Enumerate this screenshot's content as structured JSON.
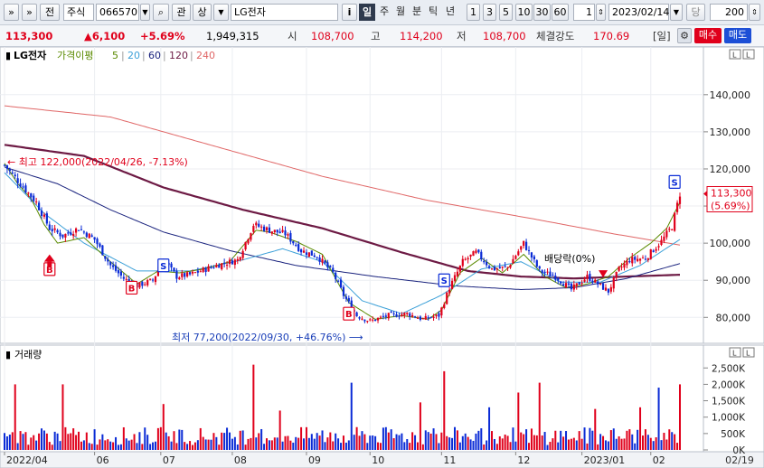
{
  "toolbar": {
    "btn_collapse": "»",
    "btn_expand": "»",
    "btn_all": "전",
    "market_select": "주식",
    "code": "066570",
    "btn_rel": "관",
    "btn_up": "상",
    "name": "LG전자",
    "btn_info": "i",
    "period_day": "일",
    "period_week": "주",
    "period_month": "월",
    "period_min": "분",
    "period_tick": "틱",
    "period_year": "년",
    "n1": "1",
    "n3": "3",
    "n5": "5",
    "n10": "10",
    "n30": "30",
    "n60": "60",
    "spin_value": "1",
    "date": "2023/02/14",
    "btn_dang": "당",
    "count": "200"
  },
  "quote": {
    "price": "113,300",
    "change": "▲6,100",
    "pct": "+5.69%",
    "volume": "1,949,315",
    "open_label": "시",
    "open": "108,700",
    "high_label": "고",
    "high": "114,200",
    "low_label": "저",
    "low": "108,700",
    "strength_label": "체결강도",
    "strength": "170.69",
    "period_tag": "[일]",
    "buy": "매수",
    "sell": "매도"
  },
  "colors": {
    "up": "#e0001b",
    "down": "#0a2bd6",
    "ma5": "#5a8a00",
    "ma20": "#3ca0d8",
    "ma60": "#1a237e",
    "ma120": "#6d1a44",
    "ma240": "#e06666"
  },
  "chart_data": {
    "type": "candlestick",
    "legend": {
      "title": "LG전자",
      "ma_label": "가격이평",
      "ma5": "5",
      "ma20": "20",
      "ma60": "60",
      "ma120": "120",
      "ma240": "240"
    },
    "y_ticks": [
      "140,000",
      "130,000",
      "120,000",
      "110,000",
      "100,000",
      "90,000",
      "80,000"
    ],
    "y_tick_values": [
      140000,
      130000,
      120000,
      110000,
      100000,
      90000,
      80000
    ],
    "y_range": [
      73500,
      147500
    ],
    "x_labels": [
      {
        "label": "2022/04",
        "index": 0
      },
      {
        "label": "06",
        "index": 34
      },
      {
        "label": "07",
        "index": 59
      },
      {
        "label": "08",
        "index": 86
      },
      {
        "label": "09",
        "index": 114
      },
      {
        "label": "10",
        "index": 138
      },
      {
        "label": "11",
        "index": 165
      },
      {
        "label": "12",
        "index": 193
      },
      {
        "label": "2023/01",
        "index": 218
      },
      {
        "label": "02",
        "index": 244
      }
    ],
    "date_label": "02/19",
    "scale_tag": "L",
    "price_tag_value": "113,300",
    "price_tag_pct": "(5.69%)",
    "price_tag_level": 113300,
    "annotations": {
      "high": "최고 122,000(2022/04/26, -7.13%)",
      "high_value": 122000,
      "low": "최저 77,200(2022/09/30, +46.76%)",
      "low_value": 77200,
      "dividend": "배당락(0%)"
    },
    "signals": [
      {
        "type": "B",
        "index": 17,
        "value": 93000
      },
      {
        "type": "S",
        "index": 60,
        "value": 94000
      },
      {
        "type": "B",
        "index": 48,
        "value": 88000
      },
      {
        "type": "B",
        "index": 130,
        "value": 81000
      },
      {
        "type": "S",
        "index": 166,
        "value": 90000
      },
      {
        "type": "S",
        "index": 253,
        "value": 116500
      }
    ],
    "ma240": [
      [
        0,
        137000
      ],
      [
        40,
        134000
      ],
      [
        80,
        126000
      ],
      [
        120,
        118000
      ],
      [
        160,
        111500
      ],
      [
        200,
        106500
      ],
      [
        230,
        102500
      ],
      [
        255,
        99500
      ]
    ],
    "ma120": [
      [
        0,
        126500
      ],
      [
        30,
        123500
      ],
      [
        60,
        115000
      ],
      [
        90,
        109000
      ],
      [
        120,
        104000
      ],
      [
        150,
        97500
      ],
      [
        175,
        92500
      ],
      [
        195,
        91000
      ],
      [
        215,
        90500
      ],
      [
        235,
        91000
      ],
      [
        255,
        91500
      ]
    ],
    "ma60": [
      [
        0,
        120500
      ],
      [
        20,
        116000
      ],
      [
        40,
        109000
      ],
      [
        60,
        103000
      ],
      [
        85,
        98000
      ],
      [
        110,
        94000
      ],
      [
        140,
        91000
      ],
      [
        170,
        88500
      ],
      [
        195,
        87500
      ],
      [
        215,
        88000
      ],
      [
        235,
        90500
      ],
      [
        255,
        94500
      ]
    ],
    "ma20": [
      [
        0,
        119000
      ],
      [
        15,
        108000
      ],
      [
        30,
        100000
      ],
      [
        50,
        92500
      ],
      [
        70,
        92500
      ],
      [
        90,
        95500
      ],
      [
        105,
        98500
      ],
      [
        120,
        95000
      ],
      [
        135,
        84500
      ],
      [
        150,
        81000
      ],
      [
        165,
        86000
      ],
      [
        180,
        93000
      ],
      [
        195,
        95000
      ],
      [
        210,
        89500
      ],
      [
        225,
        89500
      ],
      [
        240,
        94000
      ],
      [
        255,
        101000
      ]
    ],
    "ma5": [
      [
        0,
        121500
      ],
      [
        5,
        116000
      ],
      [
        10,
        112000
      ],
      [
        15,
        105000
      ],
      [
        20,
        100000
      ],
      [
        30,
        101500
      ],
      [
        40,
        95000
      ],
      [
        50,
        89000
      ],
      [
        58,
        92500
      ],
      [
        66,
        92000
      ],
      [
        75,
        93000
      ],
      [
        85,
        95000
      ],
      [
        95,
        103500
      ],
      [
        100,
        103000
      ],
      [
        110,
        100500
      ],
      [
        120,
        97000
      ],
      [
        130,
        84000
      ],
      [
        140,
        79500
      ],
      [
        150,
        80500
      ],
      [
        160,
        79500
      ],
      [
        165,
        82000
      ],
      [
        172,
        92000
      ],
      [
        180,
        96000
      ],
      [
        188,
        92000
      ],
      [
        196,
        97000
      ],
      [
        204,
        91000
      ],
      [
        212,
        88000
      ],
      [
        220,
        89000
      ],
      [
        228,
        91000
      ],
      [
        236,
        96000
      ],
      [
        244,
        100000
      ],
      [
        250,
        104000
      ],
      [
        255,
        111000
      ]
    ],
    "price_path": [
      [
        0,
        121000
      ],
      [
        6,
        116000
      ],
      [
        12,
        111000
      ],
      [
        17,
        104000
      ],
      [
        22,
        102000
      ],
      [
        28,
        104000
      ],
      [
        34,
        101000
      ],
      [
        40,
        94000
      ],
      [
        45,
        90500
      ],
      [
        50,
        88500
      ],
      [
        56,
        90000
      ],
      [
        60,
        95500
      ],
      [
        65,
        91000
      ],
      [
        70,
        91500
      ],
      [
        80,
        94000
      ],
      [
        88,
        95500
      ],
      [
        94,
        105000
      ],
      [
        100,
        103500
      ],
      [
        106,
        102500
      ],
      [
        112,
        98000
      ],
      [
        118,
        96500
      ],
      [
        124,
        92000
      ],
      [
        128,
        86000
      ],
      [
        133,
        80500
      ],
      [
        138,
        79000
      ],
      [
        145,
        80500
      ],
      [
        152,
        81000
      ],
      [
        158,
        79500
      ],
      [
        164,
        80500
      ],
      [
        168,
        88000
      ],
      [
        173,
        95000
      ],
      [
        178,
        97500
      ],
      [
        184,
        93000
      ],
      [
        190,
        93500
      ],
      [
        196,
        100000
      ],
      [
        202,
        92500
      ],
      [
        208,
        91000
      ],
      [
        214,
        87500
      ],
      [
        220,
        91000
      ],
      [
        224,
        89000
      ],
      [
        228,
        87000
      ],
      [
        232,
        93000
      ],
      [
        236,
        95500
      ],
      [
        242,
        96000
      ],
      [
        248,
        100500
      ],
      [
        252,
        104500
      ],
      [
        255,
        113300
      ]
    ],
    "volume_axis": {
      "title": "거래량",
      "scale_tag": "L",
      "ticks": [
        "2,500K",
        "2,000K",
        "1,500K",
        "1,000K",
        "500K",
        "0K"
      ],
      "tick_values": [
        2500000,
        2000000,
        1500000,
        1000000,
        500000,
        0
      ],
      "max": 2700000
    },
    "volume_spikes": [
      {
        "index": 4,
        "value": 2000000
      },
      {
        "index": 22,
        "value": 2000000
      },
      {
        "index": 60,
        "value": 1400000
      },
      {
        "index": 94,
        "value": 2600000
      },
      {
        "index": 104,
        "value": 1200000
      },
      {
        "index": 131,
        "value": 2050000
      },
      {
        "index": 157,
        "value": 1450000
      },
      {
        "index": 166,
        "value": 2400000
      },
      {
        "index": 183,
        "value": 1300000
      },
      {
        "index": 194,
        "value": 1750000
      },
      {
        "index": 202,
        "value": 2050000
      },
      {
        "index": 223,
        "value": 1250000
      },
      {
        "index": 240,
        "value": 1300000
      },
      {
        "index": 247,
        "value": 1900000
      },
      {
        "index": 255,
        "value": 2000000
      }
    ],
    "n_bars": 256
  }
}
